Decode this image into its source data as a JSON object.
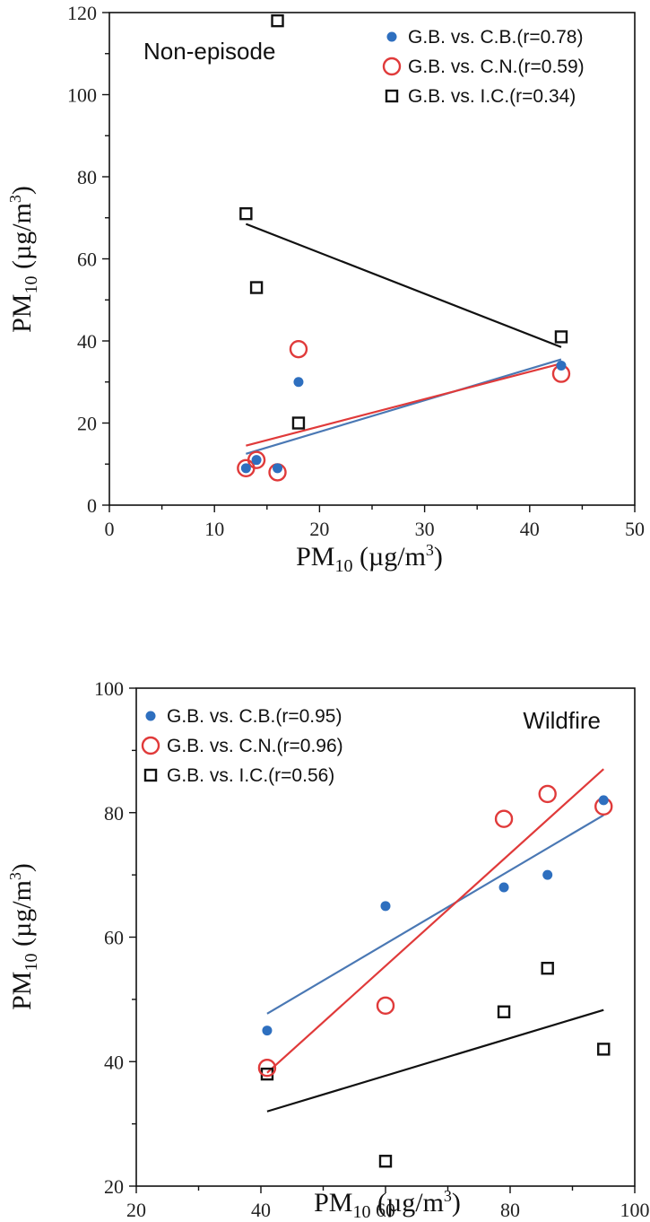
{
  "colors": {
    "cb": "#2e6fbf",
    "cn": "#e03a3a",
    "ic": "#111111",
    "cb_line": "#4a78b4"
  },
  "chart_data": [
    {
      "type": "scatter",
      "panel_label": "Non-episode",
      "xlabel": "PM10 (µg/m3)",
      "ylabel": "PM10 (µg/m3)",
      "xlim": [
        0,
        50
      ],
      "ylim": [
        0,
        120
      ],
      "xticks": [
        0,
        10,
        20,
        30,
        40,
        50
      ],
      "yticks": [
        0,
        20,
        40,
        60,
        80,
        100,
        120
      ],
      "legend_position": "top-right",
      "series": [
        {
          "name": "G.B. vs. C.B.(r=0.78)",
          "marker": "dot",
          "points": [
            [
              13,
              9
            ],
            [
              14,
              11
            ],
            [
              16,
              9
            ],
            [
              18,
              30
            ],
            [
              43,
              34
            ]
          ],
          "fit": [
            [
              13,
              12.5
            ],
            [
              43,
              35.5
            ]
          ]
        },
        {
          "name": "G.B. vs. C.N.(r=0.59)",
          "marker": "circle",
          "points": [
            [
              13,
              9
            ],
            [
              14,
              11
            ],
            [
              16,
              8
            ],
            [
              18,
              38
            ],
            [
              43,
              32
            ]
          ],
          "fit": [
            [
              13,
              14.5
            ],
            [
              43,
              34.5
            ]
          ]
        },
        {
          "name": "G.B. vs. I.C.(r=0.34)",
          "marker": "square",
          "points": [
            [
              13,
              71
            ],
            [
              14,
              53
            ],
            [
              16,
              118
            ],
            [
              18,
              20
            ],
            [
              43,
              41
            ]
          ],
          "fit": [
            [
              13,
              68.5
            ],
            [
              43,
              38.5
            ]
          ]
        }
      ]
    },
    {
      "type": "scatter",
      "panel_label": "Wildfire",
      "xlabel": "PM10 (µg/m3)",
      "ylabel": "PM10 (µg/m3)",
      "xlim": [
        20,
        100
      ],
      "ylim": [
        20,
        100
      ],
      "xticks": [
        20,
        40,
        60,
        80,
        100
      ],
      "yticks": [
        20,
        40,
        60,
        80,
        100
      ],
      "legend_position": "top-left",
      "series": [
        {
          "name": "G.B. vs. C.B.(r=0.95)",
          "marker": "dot",
          "points": [
            [
              41,
              45
            ],
            [
              60,
              65
            ],
            [
              79,
              68
            ],
            [
              86,
              70
            ],
            [
              95,
              82
            ]
          ],
          "fit": [
            [
              41,
              47.7
            ],
            [
              95,
              79.6
            ]
          ]
        },
        {
          "name": "G.B. vs. C.N.(r=0.96)",
          "marker": "circle",
          "points": [
            [
              41,
              39
            ],
            [
              60,
              49
            ],
            [
              79,
              79
            ],
            [
              86,
              83
            ],
            [
              95,
              81
            ]
          ],
          "fit": [
            [
              41,
              38.2
            ],
            [
              95,
              87
            ]
          ]
        },
        {
          "name": "G.B. vs. I.C.(r=0.56)",
          "marker": "square",
          "points": [
            [
              41,
              38
            ],
            [
              60,
              24
            ],
            [
              79,
              48
            ],
            [
              86,
              55
            ],
            [
              95,
              42
            ]
          ],
          "fit": [
            [
              41,
              32
            ],
            [
              95,
              48.3
            ]
          ]
        }
      ]
    }
  ]
}
